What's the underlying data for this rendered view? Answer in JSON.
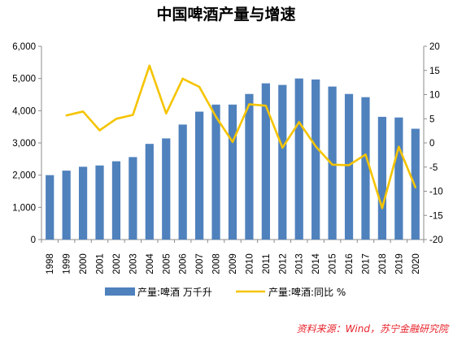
{
  "chart_data": {
    "type": "bar",
    "title": "中国啤酒产量与增速",
    "categories": [
      "1998",
      "1999",
      "2000",
      "2001",
      "2002",
      "2003",
      "2004",
      "2005",
      "2006",
      "2007",
      "2008",
      "2009",
      "2010",
      "2011",
      "2012",
      "2013",
      "2014",
      "2015",
      "2016",
      "2017",
      "2018",
      "2019",
      "2020"
    ],
    "series": [
      {
        "name": "产量:啤酒 万千升",
        "type": "bar",
        "axis": "left",
        "color": "#4f81bd",
        "values": [
          2000,
          2140,
          2260,
          2300,
          2430,
          2560,
          2970,
          3140,
          3570,
          3970,
          4190,
          4190,
          4520,
          4850,
          4800,
          5000,
          4970,
          4750,
          4520,
          4420,
          3810,
          3790,
          3440
        ]
      },
      {
        "name": "产量:啤酒:同比 %",
        "type": "line",
        "axis": "right",
        "color": "#f5c400",
        "values": [
          null,
          5.7,
          6.5,
          2.6,
          5.0,
          5.8,
          16.0,
          6.1,
          13.3,
          11.6,
          5.4,
          0.2,
          8.0,
          7.7,
          -1.0,
          4.3,
          -0.7,
          -4.5,
          -4.6,
          -2.4,
          -13.5,
          -0.8,
          -9.2
        ]
      }
    ],
    "ylim_left": [
      0,
      6000
    ],
    "ylim_right": [
      -20,
      20
    ],
    "yticks_left": [
      "0",
      "1,000",
      "2,000",
      "3,000",
      "4,000",
      "5,000",
      "6,000"
    ],
    "yticks_right": [
      "-20",
      "-15",
      "-10",
      "-5",
      "0",
      "5",
      "10",
      "15",
      "20"
    ],
    "grid": false,
    "legend_placement": "bottom"
  },
  "source_note": "资料来源：Wind，苏宁金融研究院"
}
